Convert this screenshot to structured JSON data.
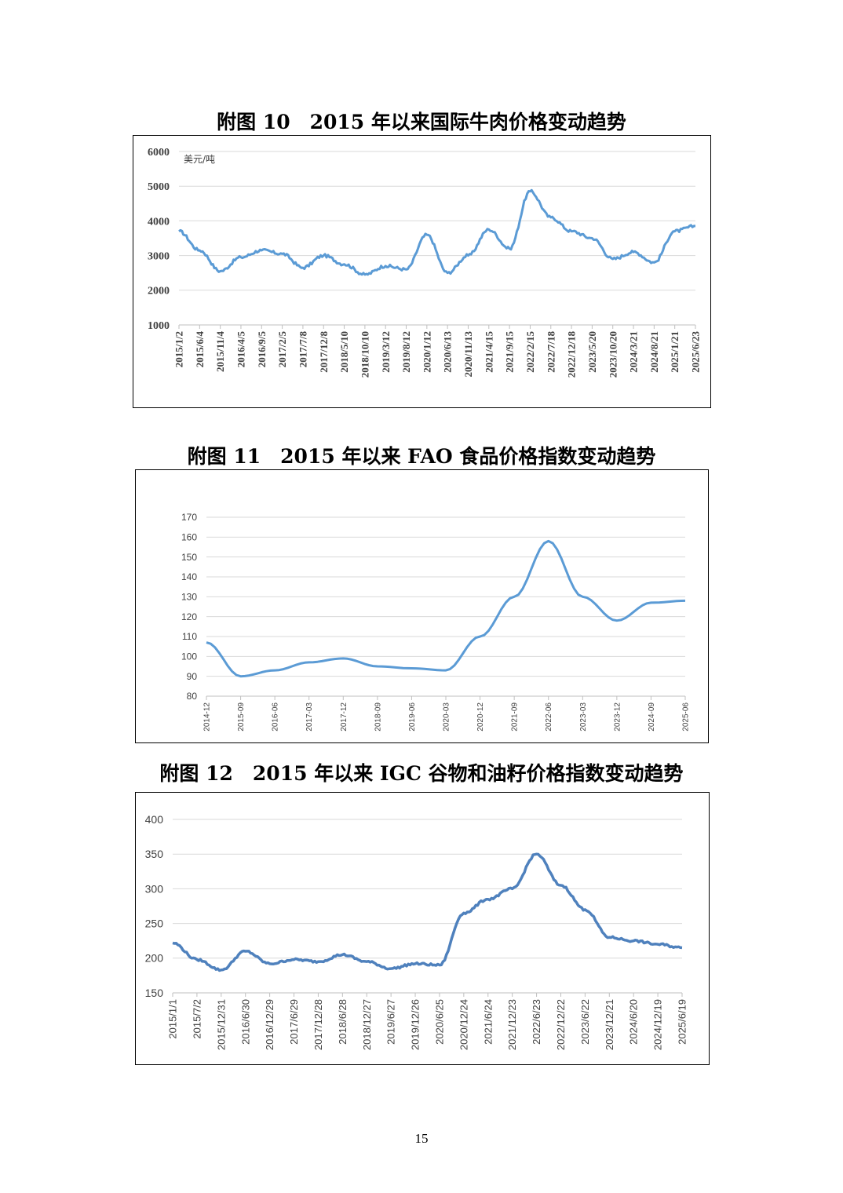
{
  "page_number": "15",
  "figures": [
    {
      "title": "附图 10　2015 年以来国际牛肉价格变动趋势",
      "unit_label": "美元/吨",
      "y_ticks": [
        "1000",
        "2000",
        "3000",
        "4000",
        "5000",
        "6000"
      ],
      "x_ticks": [
        "2015/1/2",
        "2015/6/4",
        "2015/11/4",
        "2016/4/5",
        "2016/9/5",
        "2017/2/5",
        "2017/7/8",
        "2017/12/8",
        "2018/5/10",
        "2018/10/10",
        "2019/3/12",
        "2019/8/12",
        "2020/1/12",
        "2020/6/13",
        "2020/11/13",
        "2021/4/15",
        "2021/9/15",
        "2022/2/15",
        "2022/7/18",
        "2022/12/18",
        "2023/5/20",
        "2023/10/20",
        "2024/3/21",
        "2024/8/21",
        "2025/1/21",
        "2025/6/23"
      ]
    },
    {
      "title": "附图 11　2015 年以来 FAO 食品价格指数变动趋势",
      "y_ticks": [
        "80",
        "90",
        "100",
        "110",
        "120",
        "130",
        "140",
        "150",
        "160",
        "170"
      ],
      "x_ticks": [
        "2014-12",
        "2015-09",
        "2016-06",
        "2017-03",
        "2017-12",
        "2018-09",
        "2019-06",
        "2020-03",
        "2020-12",
        "2021-09",
        "2022-06",
        "2023-03",
        "2023-12",
        "2024-09",
        "2025-06"
      ]
    },
    {
      "title": "附图 12　2015 年以来 IGC 谷物和油籽价格指数变动趋势",
      "y_ticks": [
        "150",
        "200",
        "250",
        "300",
        "350",
        "400"
      ],
      "x_ticks": [
        "2015/1/1",
        "2015/7/2",
        "2015/12/31",
        "2016/6/30",
        "2016/12/29",
        "2017/6/29",
        "2017/12/28",
        "2018/6/28",
        "2018/12/27",
        "2019/6/27",
        "2019/12/26",
        "2020/6/25",
        "2020/12/24",
        "2021/6/24",
        "2021/12/23",
        "2022/6/23",
        "2022/12/22",
        "2023/6/22",
        "2023/12/21",
        "2024/6/20",
        "2024/12/19",
        "2025/6/19"
      ]
    }
  ],
  "chart_data": [
    {
      "type": "line",
      "title": "附图 10　2015 年以来国际牛肉价格变动趋势",
      "ylabel": "美元/吨",
      "ylim": [
        1000,
        6000
      ],
      "grid": true,
      "line_color": "#5b9bd5",
      "x": [
        "2015/1/2",
        "2015/6/4",
        "2015/11/4",
        "2016/4/5",
        "2016/9/5",
        "2017/2/5",
        "2017/7/8",
        "2017/12/8",
        "2018/5/10",
        "2018/10/10",
        "2019/3/12",
        "2019/8/12",
        "2020/1/12",
        "2020/6/13",
        "2020/11/13",
        "2021/4/15",
        "2021/9/15",
        "2022/2/15",
        "2022/7/18",
        "2022/12/18",
        "2023/5/20",
        "2023/10/20",
        "2024/3/21",
        "2024/8/21",
        "2025/1/21",
        "2025/6/23"
      ],
      "series": [
        {
          "values": [
            3700,
            3150,
            2550,
            2950,
            3150,
            3050,
            2650,
            3000,
            2750,
            2450,
            2700,
            2600,
            3600,
            2500,
            3000,
            3750,
            3200,
            4850,
            4100,
            3700,
            3500,
            2900,
            3100,
            2800,
            3700,
            3850
          ]
        }
      ]
    },
    {
      "type": "line",
      "title": "附图 11　2015 年以来 FAO 食品价格指数变动趋势",
      "ylim": [
        80,
        170
      ],
      "grid": true,
      "line_color": "#5b9bd5",
      "x": [
        "2014-12",
        "2015-09",
        "2016-06",
        "2017-03",
        "2017-12",
        "2018-09",
        "2019-06",
        "2020-03",
        "2020-12",
        "2021-09",
        "2022-06",
        "2023-03",
        "2023-12",
        "2024-09",
        "2025-06"
      ],
      "series": [
        {
          "values": [
            107,
            90,
            93,
            97,
            99,
            95,
            94,
            93,
            110,
            130,
            158,
            130,
            118,
            127,
            128
          ]
        }
      ]
    },
    {
      "type": "line",
      "title": "附图 12　2015 年以来 IGC 谷物和油籽价格指数变动趋势",
      "ylim": [
        150,
        400
      ],
      "grid": true,
      "line_color": "#4f81bd",
      "x": [
        "2015/1/1",
        "2015/7/2",
        "2015/12/31",
        "2016/6/30",
        "2016/12/29",
        "2017/6/29",
        "2017/12/28",
        "2018/6/28",
        "2018/12/27",
        "2019/6/27",
        "2019/12/26",
        "2020/6/25",
        "2020/12/24",
        "2021/6/24",
        "2021/12/23",
        "2022/6/23",
        "2022/12/22",
        "2023/6/22",
        "2023/12/21",
        "2024/6/20",
        "2024/12/19",
        "2025/6/19"
      ],
      "series": [
        {
          "values": [
            222,
            198,
            183,
            210,
            192,
            198,
            195,
            205,
            195,
            185,
            192,
            190,
            265,
            285,
            300,
            350,
            305,
            270,
            230,
            225,
            220,
            215
          ]
        }
      ]
    }
  ]
}
